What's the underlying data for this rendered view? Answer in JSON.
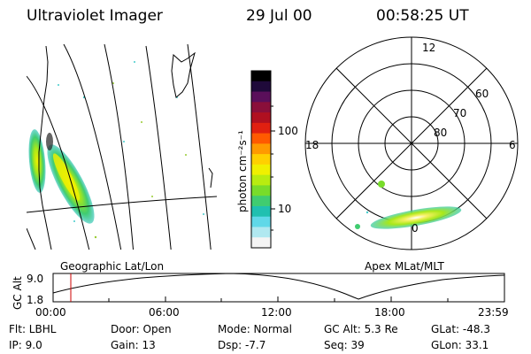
{
  "header": {
    "instrument": "Ultraviolet Imager",
    "date": "29 Jul 00",
    "time": "00:58:25 UT"
  },
  "colorbar": {
    "label": "photon cm⁻²s⁻¹",
    "ticks": [
      "100",
      "10"
    ],
    "colors": [
      "#000000",
      "#1f0a3a",
      "#5a0f5a",
      "#8a0f3a",
      "#b01020",
      "#e02010",
      "#ff5a00",
      "#ff9a00",
      "#ffd000",
      "#f0f000",
      "#b8ec10",
      "#78dc2a",
      "#40cc70",
      "#20c0b0",
      "#60d8e8",
      "#b0e8f0",
      "#f4f4f4"
    ]
  },
  "polar": {
    "lat_labels": [
      "60",
      "70",
      "80"
    ],
    "mlt_labels": {
      "top": "12",
      "left": "18",
      "right": "6",
      "bottom": "0"
    }
  },
  "timeline": {
    "panel_left_label": "Geographic Lat/Lon",
    "panel_right_label": "Apex MLat/MLT",
    "y_axis_label": "GC Alt",
    "y_ticks": [
      "9.0",
      "1.8"
    ],
    "x_ticks": [
      "00:00",
      "06:00",
      "12:00",
      "18:00",
      "23:59"
    ]
  },
  "status": {
    "flt": "Flt: LBHL",
    "ip": "IP:  9.0",
    "door": "Door: Open",
    "gain": "Gain: 13",
    "mode": "Mode: Normal",
    "dsp": "Dsp:    -7.7",
    "gcalt": "GC Alt: 5.3 Re",
    "seq": "Seq: 39",
    "glat": "GLat:  -48.3",
    "glon": "GLon:  33.1"
  }
}
